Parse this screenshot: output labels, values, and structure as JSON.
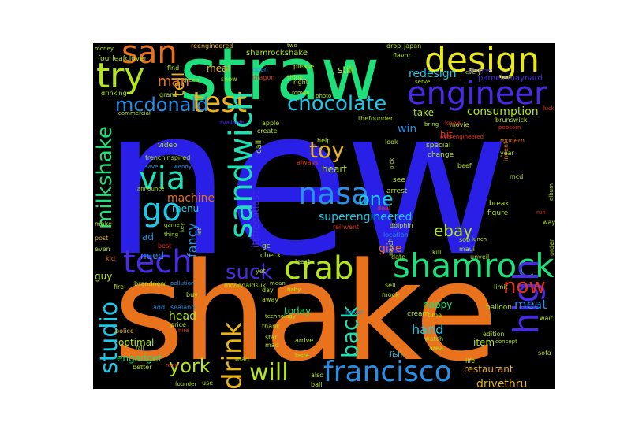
{
  "palette": {
    "blue": "#2a1fe6",
    "orange": "#e8731c",
    "green": "#1ee07a",
    "lime": "#b5e61d",
    "yellow": "#e8e81c",
    "cyan": "#1ec9e8",
    "teal": "#1ee0b5",
    "red": "#e8301c",
    "gold": "#e8b41c",
    "indigo": "#4b2ae6",
    "sky": "#2a8fe6"
  },
  "words": [
    {
      "text": "new",
      "color": "blue"
    },
    {
      "text": "shake",
      "color": "orange"
    },
    {
      "text": "straw",
      "color": "green"
    },
    {
      "text": "design",
      "color": "yellow"
    },
    {
      "text": "engineer",
      "color": "indigo"
    },
    {
      "text": "try",
      "color": "lime"
    },
    {
      "text": "san",
      "color": "orange"
    },
    {
      "text": "test",
      "color": "gold"
    },
    {
      "text": "mcdonald",
      "color": "sky"
    },
    {
      "text": "chocolate",
      "color": "cyan"
    },
    {
      "text": "milkshake",
      "color": "green"
    },
    {
      "text": "via",
      "color": "teal"
    },
    {
      "text": "go",
      "color": "cyan"
    },
    {
      "text": "sandwich",
      "color": "teal"
    },
    {
      "text": "tech",
      "color": "indigo"
    },
    {
      "text": "nasa",
      "color": "sky"
    },
    {
      "text": "one",
      "color": "cyan"
    },
    {
      "text": "toy",
      "color": "gold"
    },
    {
      "text": "shamrock",
      "color": "green"
    },
    {
      "text": "crab",
      "color": "lime"
    },
    {
      "text": "suck",
      "color": "indigo"
    },
    {
      "text": "high",
      "color": "indigo"
    },
    {
      "text": "now",
      "color": "red"
    },
    {
      "text": "studio",
      "color": "cyan"
    },
    {
      "text": "drink",
      "color": "gold"
    },
    {
      "text": "back",
      "color": "teal"
    },
    {
      "text": "francisco",
      "color": "sky"
    },
    {
      "text": "will",
      "color": "lime"
    },
    {
      "text": "york",
      "color": "lime"
    },
    {
      "text": "ebay",
      "color": "lime"
    },
    {
      "text": "superengineered",
      "color": "cyan"
    },
    {
      "text": "consumption",
      "color": "lime"
    },
    {
      "text": "redesign",
      "color": "cyan"
    },
    {
      "text": "meat",
      "color": "sky"
    },
    {
      "text": "hand",
      "color": "cyan"
    },
    {
      "text": "head",
      "color": "lime"
    },
    {
      "text": "drivethru",
      "color": "gold"
    },
    {
      "text": "tell",
      "color": "gold"
    },
    {
      "text": "man",
      "color": "orange"
    },
    {
      "text": "machine",
      "color": "orange"
    },
    {
      "text": "menu",
      "color": "cyan"
    },
    {
      "text": "fancy",
      "color": "sky"
    },
    {
      "text": "itsfreeatlast",
      "color": "indigo"
    },
    {
      "text": "heart",
      "color": "lime"
    },
    {
      "text": "still",
      "color": "lime"
    },
    {
      "text": "meal",
      "color": "gold"
    },
    {
      "text": "take",
      "color": "lime"
    },
    {
      "text": "win",
      "color": "sky"
    },
    {
      "text": "give",
      "color": "orange"
    },
    {
      "text": "need",
      "color": "sky"
    },
    {
      "text": "ad",
      "color": "sky"
    },
    {
      "text": "today",
      "color": "green"
    },
    {
      "text": "item",
      "color": "lime"
    },
    {
      "text": "engadget",
      "color": "green"
    },
    {
      "text": "optimal",
      "color": "lime"
    },
    {
      "text": "restaurant",
      "color": "gold"
    },
    {
      "text": "happy",
      "color": "green"
    },
    {
      "text": "guy",
      "color": "lime"
    },
    {
      "text": "hit",
      "color": "red"
    },
    {
      "text": "pamelamaynard",
      "color": "indigo"
    },
    {
      "text": "shamrockshake",
      "color": "lime"
    },
    {
      "text": "fourleafclover",
      "color": "lime"
    },
    {
      "text": "frenchinspired",
      "color": "lime"
    },
    {
      "text": "brandnew",
      "color": "lime"
    },
    {
      "text": "mcdonaldsuk",
      "color": "lime"
    },
    {
      "text": "reengineered",
      "color": "gold"
    },
    {
      "text": "video",
      "color": "lime"
    },
    {
      "text": "call",
      "color": "lime"
    },
    {
      "text": "special",
      "color": "lime"
    },
    {
      "text": "change",
      "color": "lime"
    },
    {
      "text": "look",
      "color": "lime"
    },
    {
      "text": "see",
      "color": "lime"
    },
    {
      "text": "arrest",
      "color": "lime"
    },
    {
      "text": "location",
      "color": "sky"
    },
    {
      "text": "dolphin",
      "color": "lime"
    },
    {
      "text": "check",
      "color": "lime"
    },
    {
      "text": "gc",
      "color": "lime"
    },
    {
      "text": "post",
      "color": "gold"
    },
    {
      "text": "kid",
      "color": "orange"
    },
    {
      "text": "fire",
      "color": "lime"
    },
    {
      "text": "police",
      "color": "gold"
    },
    {
      "text": "better",
      "color": "lime"
    },
    {
      "text": "arrive",
      "color": "lime"
    },
    {
      "text": "star",
      "color": "lime"
    },
    {
      "text": "mac",
      "color": "lime"
    },
    {
      "text": "fish",
      "color": "cyan"
    },
    {
      "text": "life",
      "color": "lime"
    },
    {
      "text": "cream",
      "color": "lime"
    },
    {
      "text": "watch",
      "color": "lime"
    },
    {
      "text": "balloon",
      "color": "lime"
    },
    {
      "text": "figure",
      "color": "lime"
    },
    {
      "text": "break",
      "color": "lime"
    },
    {
      "text": "deal",
      "color": "red"
    },
    {
      "text": "reinvent",
      "color": "red"
    },
    {
      "text": "beef",
      "color": "lime"
    },
    {
      "text": "invent",
      "color": "orange"
    },
    {
      "text": "modern",
      "color": "orange"
    },
    {
      "text": "brunswick",
      "color": "lime"
    },
    {
      "text": "thefounder",
      "color": "lime"
    },
    {
      "text": "movie",
      "color": "lime"
    },
    {
      "text": "drinking",
      "color": "lime"
    },
    {
      "text": "grand",
      "color": "lime"
    },
    {
      "text": "find",
      "color": "lime"
    },
    {
      "text": "open",
      "color": "sky"
    },
    {
      "text": "dragon",
      "color": "red"
    },
    {
      "text": "help",
      "color": "lime"
    },
    {
      "text": "always",
      "color": "red"
    },
    {
      "text": "least",
      "color": "lime"
    },
    {
      "text": "away",
      "color": "lime"
    },
    {
      "text": "day",
      "color": "lime"
    },
    {
      "text": "add",
      "color": "sky"
    },
    {
      "text": "price",
      "color": "lime"
    },
    {
      "text": "thank",
      "color": "lime"
    },
    {
      "text": "road",
      "color": "lime"
    },
    {
      "text": "yet",
      "color": "lime"
    },
    {
      "text": "never",
      "color": "sky"
    },
    {
      "text": "sell",
      "color": "lime"
    },
    {
      "text": "much",
      "color": "lime"
    },
    {
      "text": "unveil",
      "color": "lime"
    },
    {
      "text": "edition",
      "color": "lime"
    },
    {
      "text": "concept",
      "color": "lime"
    },
    {
      "text": "sofa",
      "color": "lime"
    },
    {
      "text": "wait",
      "color": "lime"
    },
    {
      "text": "order",
      "color": "lime"
    },
    {
      "text": "way",
      "color": "lime"
    },
    {
      "text": "japan",
      "color": "lime"
    },
    {
      "text": "drop",
      "color": "lime"
    },
    {
      "text": "flavor",
      "color": "lime"
    },
    {
      "text": "please",
      "color": "lime"
    },
    {
      "text": "right",
      "color": "lime"
    },
    {
      "text": "think",
      "color": "lime"
    },
    {
      "text": "snow",
      "color": "lime"
    },
    {
      "text": "create",
      "color": "lime"
    },
    {
      "text": "apple",
      "color": "lime"
    },
    {
      "text": "available",
      "color": "indigo"
    },
    {
      "text": "make",
      "color": "lime"
    },
    {
      "text": "even",
      "color": "lime"
    },
    {
      "text": "best",
      "color": "red"
    },
    {
      "text": "green",
      "color": "lime"
    },
    {
      "text": "bring",
      "color": "lime"
    },
    {
      "text": "know",
      "color": "red"
    },
    {
      "text": "serve",
      "color": "lime"
    },
    {
      "text": "every",
      "color": "lime"
    },
    {
      "text": "year",
      "color": "lime"
    },
    {
      "text": "mcd",
      "color": "lime"
    },
    {
      "text": "popcorn",
      "color": "red"
    },
    {
      "text": "limit",
      "color": "lime"
    },
    {
      "text": "maui",
      "color": "lime"
    },
    {
      "text": "sob",
      "color": "lime"
    },
    {
      "text": "lunch",
      "color": "lime"
    },
    {
      "text": "kill",
      "color": "lime"
    },
    {
      "text": "date",
      "color": "lime"
    },
    {
      "text": "mock",
      "color": "lime"
    },
    {
      "text": "time",
      "color": "lime"
    },
    {
      "text": "area",
      "color": "lime"
    },
    {
      "text": "technology",
      "color": "lime"
    },
    {
      "text": "baby",
      "color": "lime"
    },
    {
      "text": "mean",
      "color": "lime"
    },
    {
      "text": "pollution",
      "color": "sky"
    },
    {
      "text": "sealand",
      "color": "sky"
    },
    {
      "text": "hire",
      "color": "red"
    },
    {
      "text": "buy",
      "color": "lime"
    },
    {
      "text": "fall",
      "color": "lime"
    },
    {
      "text": "read",
      "color": "red"
    },
    {
      "text": "use",
      "color": "lime"
    },
    {
      "text": "founder",
      "color": "lime"
    },
    {
      "text": "ball",
      "color": "lime"
    },
    {
      "text": "also",
      "color": "lime"
    },
    {
      "text": "taste",
      "color": "lime"
    },
    {
      "text": "commercial",
      "color": "lime"
    },
    {
      "text": "money",
      "color": "lime"
    },
    {
      "text": "overengineered",
      "color": "red"
    },
    {
      "text": "designer",
      "color": "indigo"
    },
    {
      "text": "announce",
      "color": "lime"
    },
    {
      "text": "game",
      "color": "lime"
    },
    {
      "text": "thing",
      "color": "lime"
    },
    {
      "text": "key",
      "color": "lime"
    },
    {
      "text": "let",
      "color": "lime"
    },
    {
      "text": "wendy",
      "color": "sky"
    },
    {
      "text": "save",
      "color": "sky"
    },
    {
      "text": "two",
      "color": "lime"
    },
    {
      "text": "roman",
      "color": "lime"
    },
    {
      "text": "photo",
      "color": "lime"
    },
    {
      "text": "pick",
      "color": "lime"
    },
    {
      "text": "run",
      "color": "red"
    },
    {
      "text": "album",
      "color": "lime"
    },
    {
      "text": "fuck",
      "color": "red"
    }
  ]
}
